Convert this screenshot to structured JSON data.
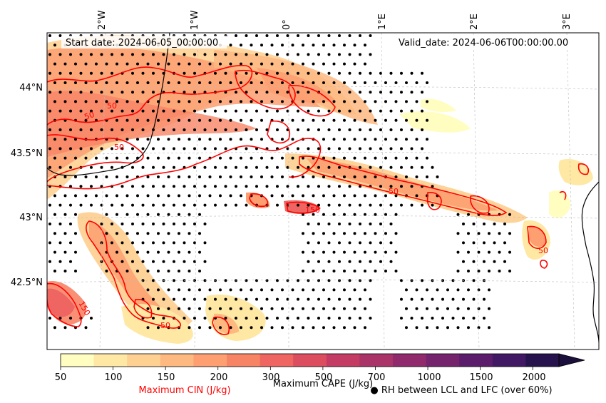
{
  "map": {
    "start_date": "Start date: 2024-06-05_00:00:00",
    "valid_date": "Valid_date: 2024-06-06T00:00:00.00",
    "lon_labels": [
      "2°W",
      "1°W",
      "0°",
      "1°E",
      "2°E",
      "3°E"
    ],
    "lat_labels": [
      "44°N",
      "43.5°N",
      "43°N",
      "42.5°N"
    ],
    "contour_labels": [
      "50",
      "50",
      "50",
      "150",
      "50",
      "50",
      "150",
      "50"
    ]
  },
  "colorbar": {
    "levels": [
      "50",
      "100",
      "150",
      "200",
      "300",
      "500",
      "700",
      "1000",
      "1500",
      "2000"
    ],
    "colors": [
      "#fffdbf",
      "#fee8a4",
      "#fed193",
      "#feb981",
      "#fd9f71",
      "#f88466",
      "#ee6561",
      "#dc4d60",
      "#c43c63",
      "#aa3367",
      "#902a6c",
      "#76236e",
      "#5b1d6b",
      "#401864",
      "#26124c"
    ],
    "title": "Maximum CAPE (J/kg)",
    "cin_label": "Maximum CIN (J/kg)",
    "cin_color": "#ff0000",
    "rh_label": "● RH between LCL and LFC (over 60%)"
  }
}
